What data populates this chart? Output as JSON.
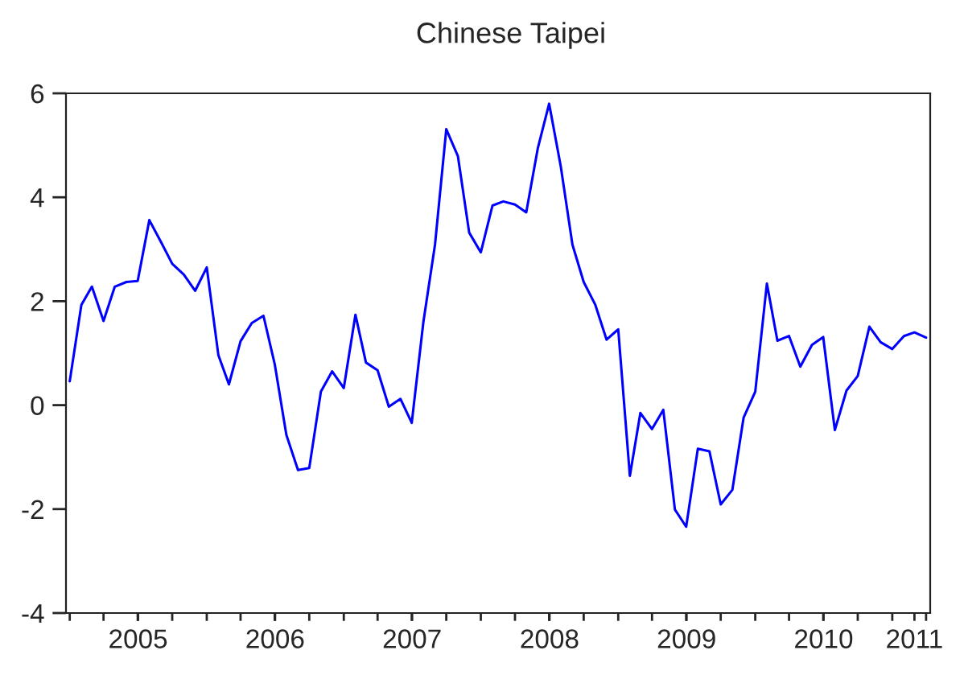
{
  "chart_data": {
    "type": "line",
    "title": "Chinese Taipei",
    "x": [
      "2005-01",
      "2005-02",
      "2005-03",
      "2005-04",
      "2005-05",
      "2005-06",
      "2005-07",
      "2005-08",
      "2005-09",
      "2005-10",
      "2005-11",
      "2005-12",
      "2006-01",
      "2006-02",
      "2006-03",
      "2006-04",
      "2006-05",
      "2006-06",
      "2006-07",
      "2006-08",
      "2006-09",
      "2006-10",
      "2006-11",
      "2006-12",
      "2007-01",
      "2007-02",
      "2007-03",
      "2007-04",
      "2007-05",
      "2007-06",
      "2007-07",
      "2007-08",
      "2007-09",
      "2007-10",
      "2007-11",
      "2007-12",
      "2008-01",
      "2008-02",
      "2008-03",
      "2008-04",
      "2008-05",
      "2008-06",
      "2008-07",
      "2008-08",
      "2008-09",
      "2008-10",
      "2008-11",
      "2008-12",
      "2009-01",
      "2009-02",
      "2009-03",
      "2009-04",
      "2009-05",
      "2009-06",
      "2009-07",
      "2009-08",
      "2009-09",
      "2009-10",
      "2009-11",
      "2009-12",
      "2010-01",
      "2010-02",
      "2010-03",
      "2010-04",
      "2010-05",
      "2010-06",
      "2010-07",
      "2010-08",
      "2010-09",
      "2010-10",
      "2010-11",
      "2010-12",
      "2011-01",
      "2011-02",
      "2011-03",
      "2011-04"
    ],
    "series": [
      {
        "color": "#0000ff",
        "values": [
          0.46,
          1.93,
          2.28,
          1.62,
          2.28,
          2.37,
          2.39,
          3.56,
          3.14,
          2.72,
          2.51,
          2.2,
          2.65,
          0.96,
          0.4,
          1.23,
          1.58,
          1.72,
          0.79,
          -0.57,
          -1.25,
          -1.21,
          0.26,
          0.65,
          0.33,
          1.74,
          0.82,
          0.67,
          -0.03,
          0.12,
          -0.34,
          1.6,
          3.09,
          5.31,
          4.79,
          3.32,
          2.94,
          3.84,
          3.92,
          3.86,
          3.71,
          4.95,
          5.8,
          4.59,
          3.09,
          2.37,
          1.93,
          1.26,
          1.46,
          -1.36,
          -0.15,
          -0.46,
          -0.09,
          -2.01,
          -2.34,
          -0.84,
          -0.89,
          -1.91,
          -1.63,
          -0.24,
          0.26,
          2.34,
          1.24,
          1.33,
          0.74,
          1.16,
          1.31,
          -0.48,
          0.28,
          0.56,
          1.51,
          1.21,
          1.08,
          1.33,
          1.4,
          1.3
        ]
      }
    ],
    "xlim": [
      "2004-12-22",
      "2011-04-12"
    ],
    "xticks": [
      {
        "value": "2005-01-01",
        "label": null
      },
      {
        "value": "2005-04-01",
        "label": null
      },
      {
        "value": "2005-07-01",
        "label": null
      },
      {
        "value": "2005-10-01",
        "label": null
      },
      {
        "value": "2006-01-01",
        "label": null
      },
      {
        "value": "2006-04-01",
        "label": null
      },
      {
        "value": "2006-07-01",
        "label": null
      },
      {
        "value": "2006-10-01",
        "label": null
      },
      {
        "value": "2007-01-01",
        "label": null
      },
      {
        "value": "2007-04-01",
        "label": null
      },
      {
        "value": "2007-07-01",
        "label": null
      },
      {
        "value": "2007-10-01",
        "label": null
      },
      {
        "value": "2008-01-01",
        "label": null
      },
      {
        "value": "2008-04-01",
        "label": null
      },
      {
        "value": "2008-07-01",
        "label": null
      },
      {
        "value": "2008-10-01",
        "label": null
      },
      {
        "value": "2009-01-01",
        "label": null
      },
      {
        "value": "2009-04-01",
        "label": null
      },
      {
        "value": "2009-07-01",
        "label": null
      },
      {
        "value": "2009-10-01",
        "label": null
      },
      {
        "value": "2010-01-01",
        "label": null
      },
      {
        "value": "2010-04-01",
        "label": null
      },
      {
        "value": "2010-07-01",
        "label": null
      },
      {
        "value": "2010-10-01",
        "label": null
      },
      {
        "value": "2011-01-01",
        "label": null
      },
      {
        "value": "2011-04-01",
        "label": null
      },
      {
        "value": "2005-07-02",
        "label": "2005"
      },
      {
        "value": "2006-07-02",
        "label": "2006"
      },
      {
        "value": "2007-07-02",
        "label": "2007"
      },
      {
        "value": "2008-07-02",
        "label": "2008"
      },
      {
        "value": "2009-07-02",
        "label": "2009"
      },
      {
        "value": "2010-07-02",
        "label": "2010"
      },
      {
        "value": "2011-03-01",
        "label": "2011"
      }
    ],
    "ylim": [
      -4,
      6
    ],
    "yticks": [
      -4,
      -2,
      0,
      2,
      4,
      6
    ],
    "marker": "none",
    "line_style": "solid"
  }
}
